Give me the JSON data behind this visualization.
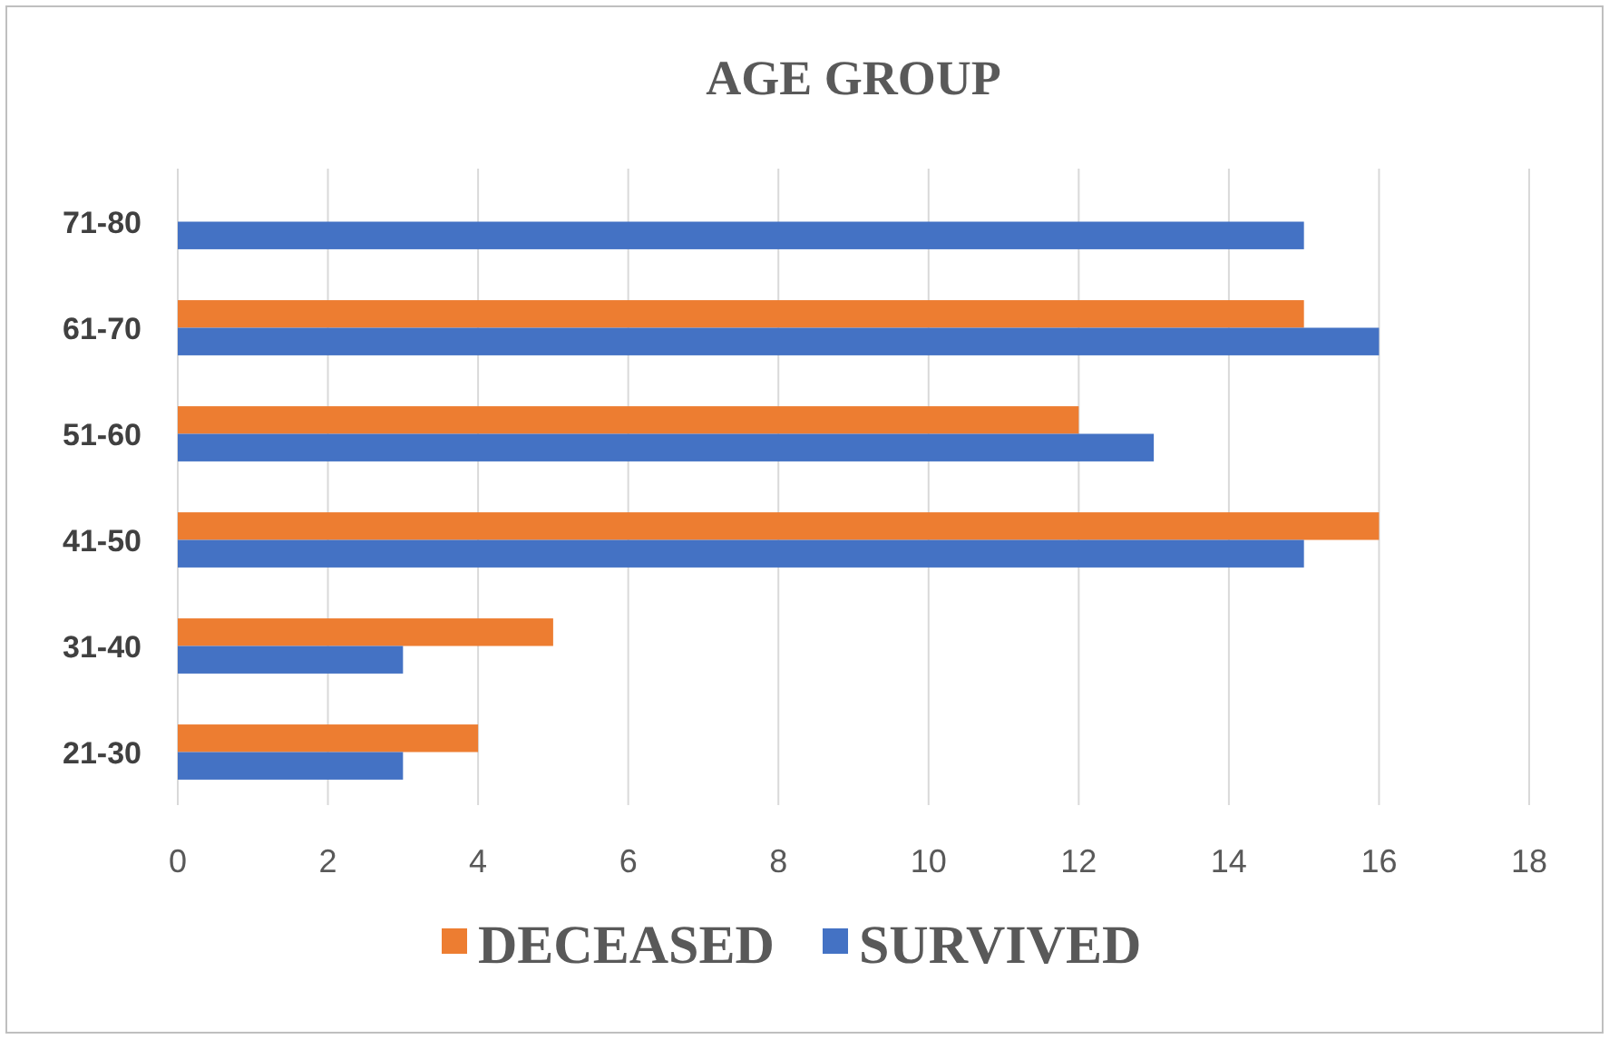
{
  "chart_data": {
    "type": "bar",
    "orientation": "horizontal",
    "title": "AGE GROUP",
    "categories": [
      "71-80",
      "61-70",
      "51-60",
      "41-50",
      "31-40",
      "21-30"
    ],
    "series": [
      {
        "name": "DECEASED",
        "color": "#ed7d31",
        "values": [
          0,
          15,
          12,
          16,
          5,
          4
        ]
      },
      {
        "name": "SURVIVED",
        "color": "#4472c4",
        "values": [
          15,
          16,
          13,
          15,
          3,
          3
        ]
      }
    ],
    "xlim": [
      0,
      18
    ],
    "xticks": [
      0,
      2,
      4,
      6,
      8,
      10,
      12,
      14,
      16,
      18
    ],
    "grid": "x",
    "legend": "bottom"
  }
}
